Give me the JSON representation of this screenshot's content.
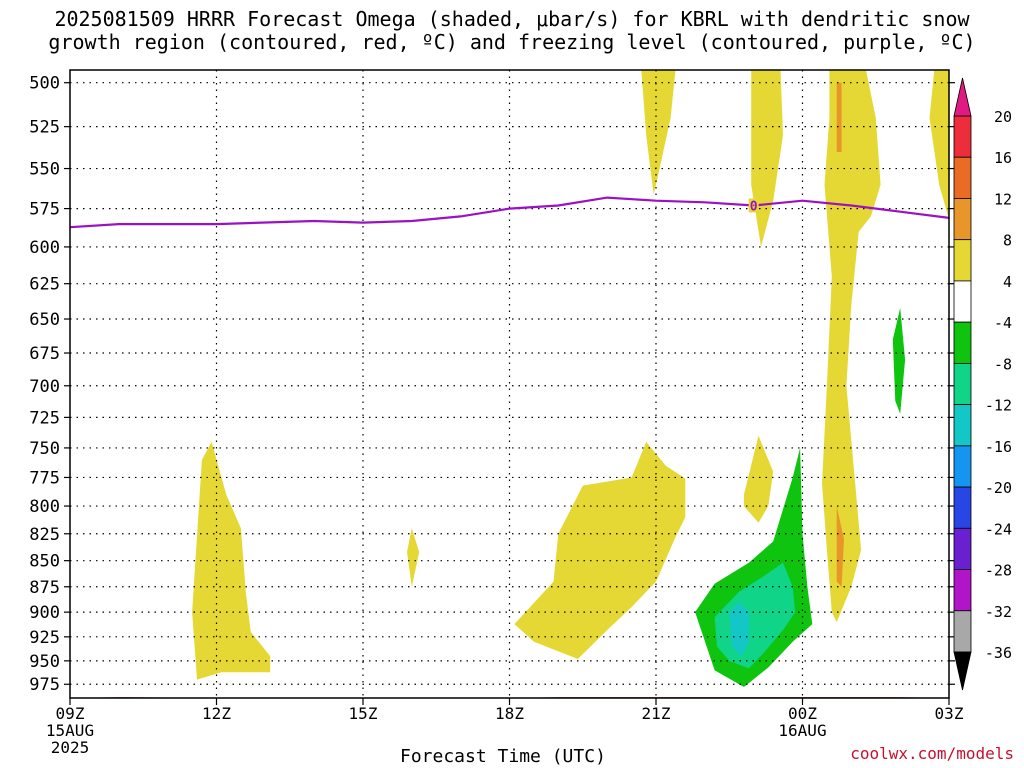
{
  "title_lines": [
    "2025081509 HRRR Forecast Omega (shaded, μbar/s) for KBRL with dendritic snow",
    "growth region (contoured, red, ºC) and freezing level (contoured, purple, ºC)"
  ],
  "credit": "coolwx.com/models",
  "chart_data": {
    "type": "time-height cross section",
    "xlabel": "Forecast Time (UTC)",
    "ylabel": "",
    "x_ticks": [
      "09Z",
      "12Z",
      "15Z",
      "18Z",
      "21Z",
      "00Z",
      "03Z"
    ],
    "x_tick_hours": [
      0,
      3,
      6,
      9,
      12,
      15,
      18
    ],
    "date_labels": [
      {
        "hour": 0,
        "lines": [
          "15AUG",
          "2025"
        ]
      },
      {
        "hour": 15,
        "lines": [
          "16AUG"
        ]
      }
    ],
    "xlim_hours": [
      0,
      18
    ],
    "y_ticks": [
      500,
      525,
      550,
      575,
      600,
      625,
      650,
      675,
      700,
      725,
      750,
      775,
      800,
      825,
      850,
      875,
      900,
      925,
      950,
      975
    ],
    "ylim_hPa": [
      990,
      493
    ],
    "y_scale": "log-pressure",
    "grid": "dotted",
    "colorbar": {
      "labels": [
        20,
        16,
        12,
        8,
        4,
        -4,
        -8,
        -12,
        -16,
        -20,
        -24,
        -28,
        -32,
        -36
      ],
      "bins": [
        {
          "lo": 16,
          "hi": 20,
          "color": "#ee2d3a"
        },
        {
          "lo": 12,
          "hi": 16,
          "color": "#ea6c24"
        },
        {
          "lo": 8,
          "hi": 12,
          "color": "#e8962a"
        },
        {
          "lo": 4,
          "hi": 8,
          "color": "#e6d834"
        },
        {
          "lo": -4,
          "hi": 4,
          "color": "#ffffff"
        },
        {
          "lo": -8,
          "hi": -4,
          "color": "#0fc40f"
        },
        {
          "lo": -12,
          "hi": -8,
          "color": "#10d488"
        },
        {
          "lo": -16,
          "hi": -12,
          "color": "#14c7c7"
        },
        {
          "lo": -20,
          "hi": -16,
          "color": "#1496f0"
        },
        {
          "lo": -24,
          "hi": -20,
          "color": "#2846e6"
        },
        {
          "lo": -28,
          "hi": -24,
          "color": "#6a1fd0"
        },
        {
          "lo": -32,
          "hi": -28,
          "color": "#b015c8"
        },
        {
          "lo": -36,
          "hi": -32,
          "color": "#a8a8a8"
        }
      ],
      "top_color": "#e01a80",
      "bottom_color": "#000000"
    },
    "freezing_level": {
      "label": "0",
      "color": "#9b12c4",
      "label_hour": 14.0,
      "hours": [
        0,
        1,
        3,
        5,
        6,
        7,
        8,
        9,
        10,
        11,
        12,
        13,
        14,
        15,
        16,
        17,
        18
      ],
      "pressure": [
        587,
        585,
        585,
        583,
        584,
        583,
        580,
        575,
        573,
        568,
        570,
        571,
        573,
        570,
        573,
        577,
        581
      ]
    },
    "omega_regions": [
      {
        "value": 4,
        "color": "#e6d834",
        "points": [
          [
            2.6,
            970
          ],
          [
            2.5,
            900
          ],
          [
            2.7,
            760
          ],
          [
            2.9,
            745
          ],
          [
            3.2,
            790
          ],
          [
            3.5,
            820
          ],
          [
            3.6,
            880
          ],
          [
            3.7,
            920
          ],
          [
            4.1,
            945
          ],
          [
            4.1,
            962
          ],
          [
            3.1,
            962
          ]
        ]
      },
      {
        "value": 4,
        "color": "#e6d834",
        "points": [
          [
            6.9,
            842
          ],
          [
            7.0,
            820
          ],
          [
            7.15,
            842
          ],
          [
            7.0,
            875
          ]
        ]
      },
      {
        "value": 4,
        "color": "#e6d834",
        "points": [
          [
            9.1,
            912
          ],
          [
            9.9,
            870
          ],
          [
            10.0,
            825
          ],
          [
            10.5,
            782
          ],
          [
            11.5,
            775
          ],
          [
            11.8,
            745
          ],
          [
            12.2,
            765
          ],
          [
            12.6,
            776
          ],
          [
            12.6,
            810
          ],
          [
            12.4,
            828
          ],
          [
            12.0,
            870
          ],
          [
            11.5,
            895
          ],
          [
            11.0,
            918
          ],
          [
            10.4,
            948
          ],
          [
            9.5,
            930
          ]
        ]
      },
      {
        "value": 4,
        "color": "#e6d834",
        "points": [
          [
            11.7,
            493
          ],
          [
            12.4,
            493
          ],
          [
            12.3,
            520
          ],
          [
            12.0,
            560
          ],
          [
            11.95,
            566
          ],
          [
            11.8,
            530
          ]
        ]
      },
      {
        "value": 4,
        "color": "#e6d834",
        "points": [
          [
            13.95,
            493
          ],
          [
            14.55,
            493
          ],
          [
            14.6,
            530
          ],
          [
            14.4,
            570
          ],
          [
            14.15,
            600
          ],
          [
            13.95,
            560
          ],
          [
            13.95,
            520
          ]
        ]
      },
      {
        "value": 4,
        "color": "#e6d834",
        "points": [
          [
            13.8,
            790
          ],
          [
            14.1,
            740
          ],
          [
            14.4,
            770
          ],
          [
            14.3,
            800
          ],
          [
            14.1,
            815
          ],
          [
            13.8,
            800
          ]
        ]
      },
      {
        "value": 4,
        "color": "#e6d834",
        "points": [
          [
            15.55,
            493
          ],
          [
            16.3,
            493
          ],
          [
            16.5,
            520
          ],
          [
            16.6,
            560
          ],
          [
            16.4,
            580
          ],
          [
            16.15,
            590
          ],
          [
            16.0,
            640
          ],
          [
            15.9,
            700
          ],
          [
            16.1,
            790
          ],
          [
            16.2,
            840
          ],
          [
            16.0,
            875
          ],
          [
            15.7,
            910
          ],
          [
            15.6,
            900
          ],
          [
            15.5,
            840
          ],
          [
            15.4,
            780
          ],
          [
            15.5,
            700
          ],
          [
            15.6,
            620
          ],
          [
            15.45,
            560
          ],
          [
            15.55,
            520
          ]
        ]
      },
      {
        "value": 4,
        "color": "#e6d834",
        "points": [
          [
            17.7,
            493
          ],
          [
            18.0,
            493
          ],
          [
            18.0,
            582
          ],
          [
            17.8,
            560
          ],
          [
            17.6,
            520
          ]
        ]
      },
      {
        "value": 8,
        "color": "#e8962a",
        "points": [
          [
            15.7,
            500
          ],
          [
            15.8,
            500
          ],
          [
            15.8,
            540
          ],
          [
            15.7,
            540
          ]
        ]
      },
      {
        "value": 8,
        "color": "#e8962a",
        "points": [
          [
            15.7,
            800
          ],
          [
            15.85,
            830
          ],
          [
            15.8,
            875
          ],
          [
            15.7,
            870
          ]
        ]
      },
      {
        "value": -4,
        "color": "#0fc40f",
        "points": [
          [
            16.85,
            665
          ],
          [
            17.0,
            642
          ],
          [
            17.1,
            680
          ],
          [
            17.0,
            722
          ],
          [
            16.9,
            712
          ]
        ]
      },
      {
        "value": -4,
        "color": "#0fc40f",
        "points": [
          [
            12.8,
            900
          ],
          [
            13.2,
            872
          ],
          [
            13.9,
            852
          ],
          [
            14.4,
            832
          ],
          [
            14.8,
            775
          ],
          [
            14.95,
            750
          ],
          [
            15.0,
            825
          ],
          [
            15.1,
            875
          ],
          [
            15.2,
            912
          ],
          [
            14.8,
            930
          ],
          [
            14.3,
            957
          ],
          [
            13.8,
            978
          ],
          [
            13.2,
            960
          ]
        ]
      },
      {
        "value": -8,
        "color": "#10d488",
        "points": [
          [
            13.2,
            905
          ],
          [
            13.7,
            880
          ],
          [
            14.2,
            865
          ],
          [
            14.6,
            852
          ],
          [
            14.8,
            875
          ],
          [
            14.85,
            900
          ],
          [
            14.6,
            918
          ],
          [
            14.2,
            942
          ],
          [
            13.9,
            958
          ],
          [
            13.5,
            950
          ],
          [
            13.25,
            935
          ]
        ]
      },
      {
        "value": -12,
        "color": "#14c7c7",
        "points": [
          [
            13.5,
            900
          ],
          [
            13.7,
            890
          ],
          [
            13.9,
            900
          ],
          [
            13.9,
            930
          ],
          [
            13.75,
            945
          ],
          [
            13.55,
            935
          ]
        ]
      }
    ],
    "surface": {
      "color": "#a0522d",
      "hours": [
        0,
        1,
        3,
        5,
        6,
        9,
        10,
        12,
        13,
        15,
        17,
        18
      ],
      "pressure": [
        990,
        989,
        990,
        990,
        990,
        990,
        989,
        989,
        989,
        989,
        989,
        990
      ]
    }
  }
}
